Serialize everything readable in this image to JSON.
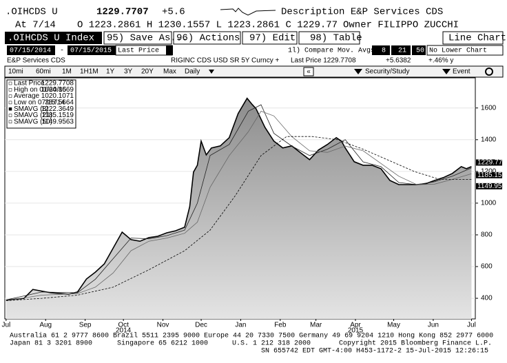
{
  "header": {
    "ticker": ".OIHCDS U",
    "price": "1229.7707",
    "change": "+5.6",
    "description": "Description E&P Services CDS",
    "date": "At 7/14",
    "ohlc": "O 1223.2861 H 1230.1557 L 1223.2861 C 1229.77",
    "owner": "Owner FILIPPO ZUCCHI"
  },
  "toolbar": {
    "security": ".OIHCDS U Index",
    "actions": [
      "95) Save As...",
      "96) Actions",
      "97) Edit",
      "98) Table"
    ],
    "chart_type": "Line Chart"
  },
  "settings": {
    "start": "07/15/2014",
    "dash": "-",
    "end": "07/15/2015",
    "field": "Last Price",
    "compare": "1l) Compare Mov. Avgs",
    "averages": [
      "8",
      "21",
      "50"
    ],
    "lower": "No Lower Chart"
  },
  "info": {
    "name": "E&P Services CDS",
    "security": "RIGINC CDS USD SR 5Y Curncy +",
    "last": "Last Price 1229.7708",
    "change": "+5.6382",
    "pct": "+.46% y"
  },
  "periods": [
    "10mi",
    "60mi",
    "1M",
    "1H1M",
    "1Y",
    "3Y",
    "20Y",
    "Max"
  ],
  "frequency": "Daily",
  "nav": {
    "back": "«",
    "study": "Security/Study",
    "event": "Event"
  },
  "chart_data": {
    "type": "line",
    "xlim": [
      -1,
      368
    ],
    "ylim": [
      270,
      1790
    ],
    "xticks": [
      {
        "value": 0,
        "label": "Jul"
      },
      {
        "value": 31,
        "label": "Aug"
      },
      {
        "value": 62,
        "label": "Sep"
      },
      {
        "value": 92,
        "label": "Oct"
      },
      {
        "value": 123,
        "label": "Nov"
      },
      {
        "value": 153,
        "label": "Dec"
      },
      {
        "value": 184,
        "label": "Jan"
      },
      {
        "value": 215,
        "label": "Feb"
      },
      {
        "value": 243,
        "label": "Mar"
      },
      {
        "value": 274,
        "label": "Apr"
      },
      {
        "value": 304,
        "label": "May"
      },
      {
        "value": 335,
        "label": "Jun"
      },
      {
        "value": 365,
        "label": "Jul"
      }
    ],
    "year_ticks": [
      {
        "value": 92,
        "label": "2014"
      },
      {
        "value": 274,
        "label": "2015"
      }
    ],
    "yticks": [
      400,
      600,
      800,
      1000,
      1200,
      1400,
      1600
    ],
    "series": [
      {
        "name": "Last Price",
        "color": "#000000",
        "area": true,
        "last": "1229.7708",
        "x": [
          0,
          14,
          21,
          35,
          49,
          56,
          63,
          70,
          77,
          84,
          91,
          98,
          105,
          112,
          119,
          126,
          133,
          140,
          144,
          147,
          150,
          153,
          157,
          161,
          168,
          175,
          182,
          189,
          193,
          196,
          203,
          210,
          217,
          224,
          231,
          238,
          245,
          252,
          259,
          263,
          266,
          273,
          280,
          287,
          294,
          301,
          308,
          315,
          322,
          329,
          336,
          343,
          350,
          357,
          361,
          365
        ],
        "values": [
          388,
          400,
          456,
          435,
          426,
          440,
          522,
          565,
          617,
          717,
          817,
          770,
          760,
          783,
          791,
          813,
          826,
          848,
          978,
          1196,
          1239,
          1391,
          1304,
          1348,
          1361,
          1413,
          1565,
          1661,
          1622,
          1596,
          1478,
          1391,
          1348,
          1361,
          1317,
          1274,
          1335,
          1370,
          1413,
          1391,
          1348,
          1261,
          1239,
          1239,
          1217,
          1143,
          1117,
          1117,
          1117,
          1122,
          1143,
          1161,
          1187,
          1230,
          1217,
          1230
        ]
      },
      {
        "name": "SMAVG (8)",
        "color": "#202020",
        "last": "1222.3649",
        "x": [
          0,
          28,
          56,
          70,
          84,
          98,
          112,
          126,
          140,
          150,
          160,
          175,
          190,
          200,
          210,
          224,
          238,
          252,
          266,
          280,
          294,
          308,
          322,
          336,
          350,
          365
        ],
        "values": [
          390,
          440,
          435,
          520,
          650,
          780,
          775,
          795,
          830,
          1000,
          1300,
          1370,
          1580,
          1620,
          1440,
          1360,
          1300,
          1340,
          1400,
          1260,
          1230,
          1130,
          1117,
          1135,
          1170,
          1222
        ]
      },
      {
        "name": "SMAVG (21)",
        "color": "#666666",
        "last": "1185.1519",
        "x": [
          0,
          28,
          56,
          70,
          84,
          98,
          112,
          126,
          140,
          150,
          160,
          175,
          190,
          200,
          210,
          224,
          238,
          252,
          266,
          280,
          294,
          308,
          322,
          336,
          350,
          365
        ],
        "values": [
          385,
          420,
          430,
          470,
          560,
          700,
          760,
          780,
          810,
          880,
          1100,
          1300,
          1450,
          1580,
          1550,
          1420,
          1330,
          1320,
          1360,
          1330,
          1250,
          1170,
          1117,
          1120,
          1150,
          1185
        ]
      },
      {
        "name": "SMAVG (50)",
        "color": "#000000",
        "dashed": true,
        "last": "1149.9563",
        "x": [
          0,
          28,
          56,
          84,
          112,
          140,
          160,
          180,
          200,
          220,
          240,
          260,
          280,
          300,
          320,
          340,
          365
        ],
        "values": [
          385,
          400,
          420,
          470,
          580,
          700,
          830,
          1050,
          1300,
          1420,
          1420,
          1400,
          1340,
          1270,
          1200,
          1150,
          1150
        ]
      }
    ],
    "stats": [
      {
        "label": "High on 01/20/15",
        "value": "1664.8669"
      },
      {
        "label": "Average",
        "value": "1020.1071"
      },
      {
        "label": "Low on 07/15/14",
        "value": "387.5664"
      }
    ]
  },
  "footer": {
    "line1": "Australia 61 2 9777 8600 Brazil 5511 2395 9000 Europe 44 20 7330 7500 Germany 49 69 9204 1210 Hong Kong 852 2977 6000",
    "japan": "Japan 81 3 3201 8900",
    "singapore": "Singapore 65 6212 1000",
    "us": "U.S. 1 212 318 2000",
    "copyright": "Copyright 2015 Bloomberg Finance L.P.",
    "sn": "SN 655742 EDT  GMT-4:00 H453-1172-2 15-Jul-2015 12:26:15"
  }
}
